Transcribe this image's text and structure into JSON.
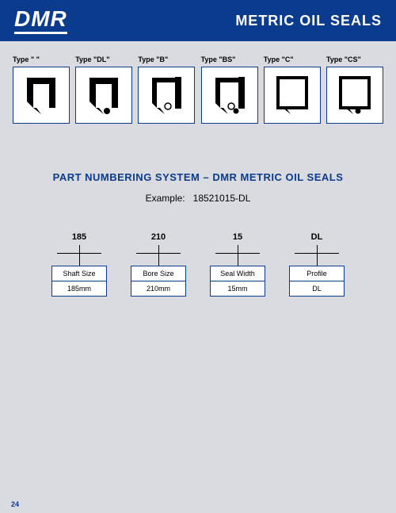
{
  "header": {
    "logo": "DMR",
    "title": "METRIC OIL SEALS"
  },
  "types": [
    {
      "label": "Type \" \"",
      "shape": "D"
    },
    {
      "label": "Type \"DL\"",
      "shape": "DL"
    },
    {
      "label": "Type \"B\"",
      "shape": "B"
    },
    {
      "label": "Type \"BS\"",
      "shape": "BS"
    },
    {
      "label": "Type \"C\"",
      "shape": "C"
    },
    {
      "label": "Type \"CS\"",
      "shape": "CS"
    }
  ],
  "section_title": "PART NUMBERING SYSTEM – DMR METRIC OIL SEALS",
  "example_label": "Example:",
  "example_value": "18521015-DL",
  "parts": [
    {
      "code": "185",
      "name": "Shaft Size",
      "value": "185mm"
    },
    {
      "code": "210",
      "name": "Bore Size",
      "value": "210mm"
    },
    {
      "code": "15",
      "name": "Seal Width",
      "value": "15mm"
    },
    {
      "code": "DL",
      "name": "Profile",
      "value": "DL"
    }
  ],
  "page_number": "24",
  "colors": {
    "brand": "#0a3b8c",
    "page_bg": "#d9dbe0",
    "box_bg": "#ffffff",
    "text": "#000000"
  }
}
